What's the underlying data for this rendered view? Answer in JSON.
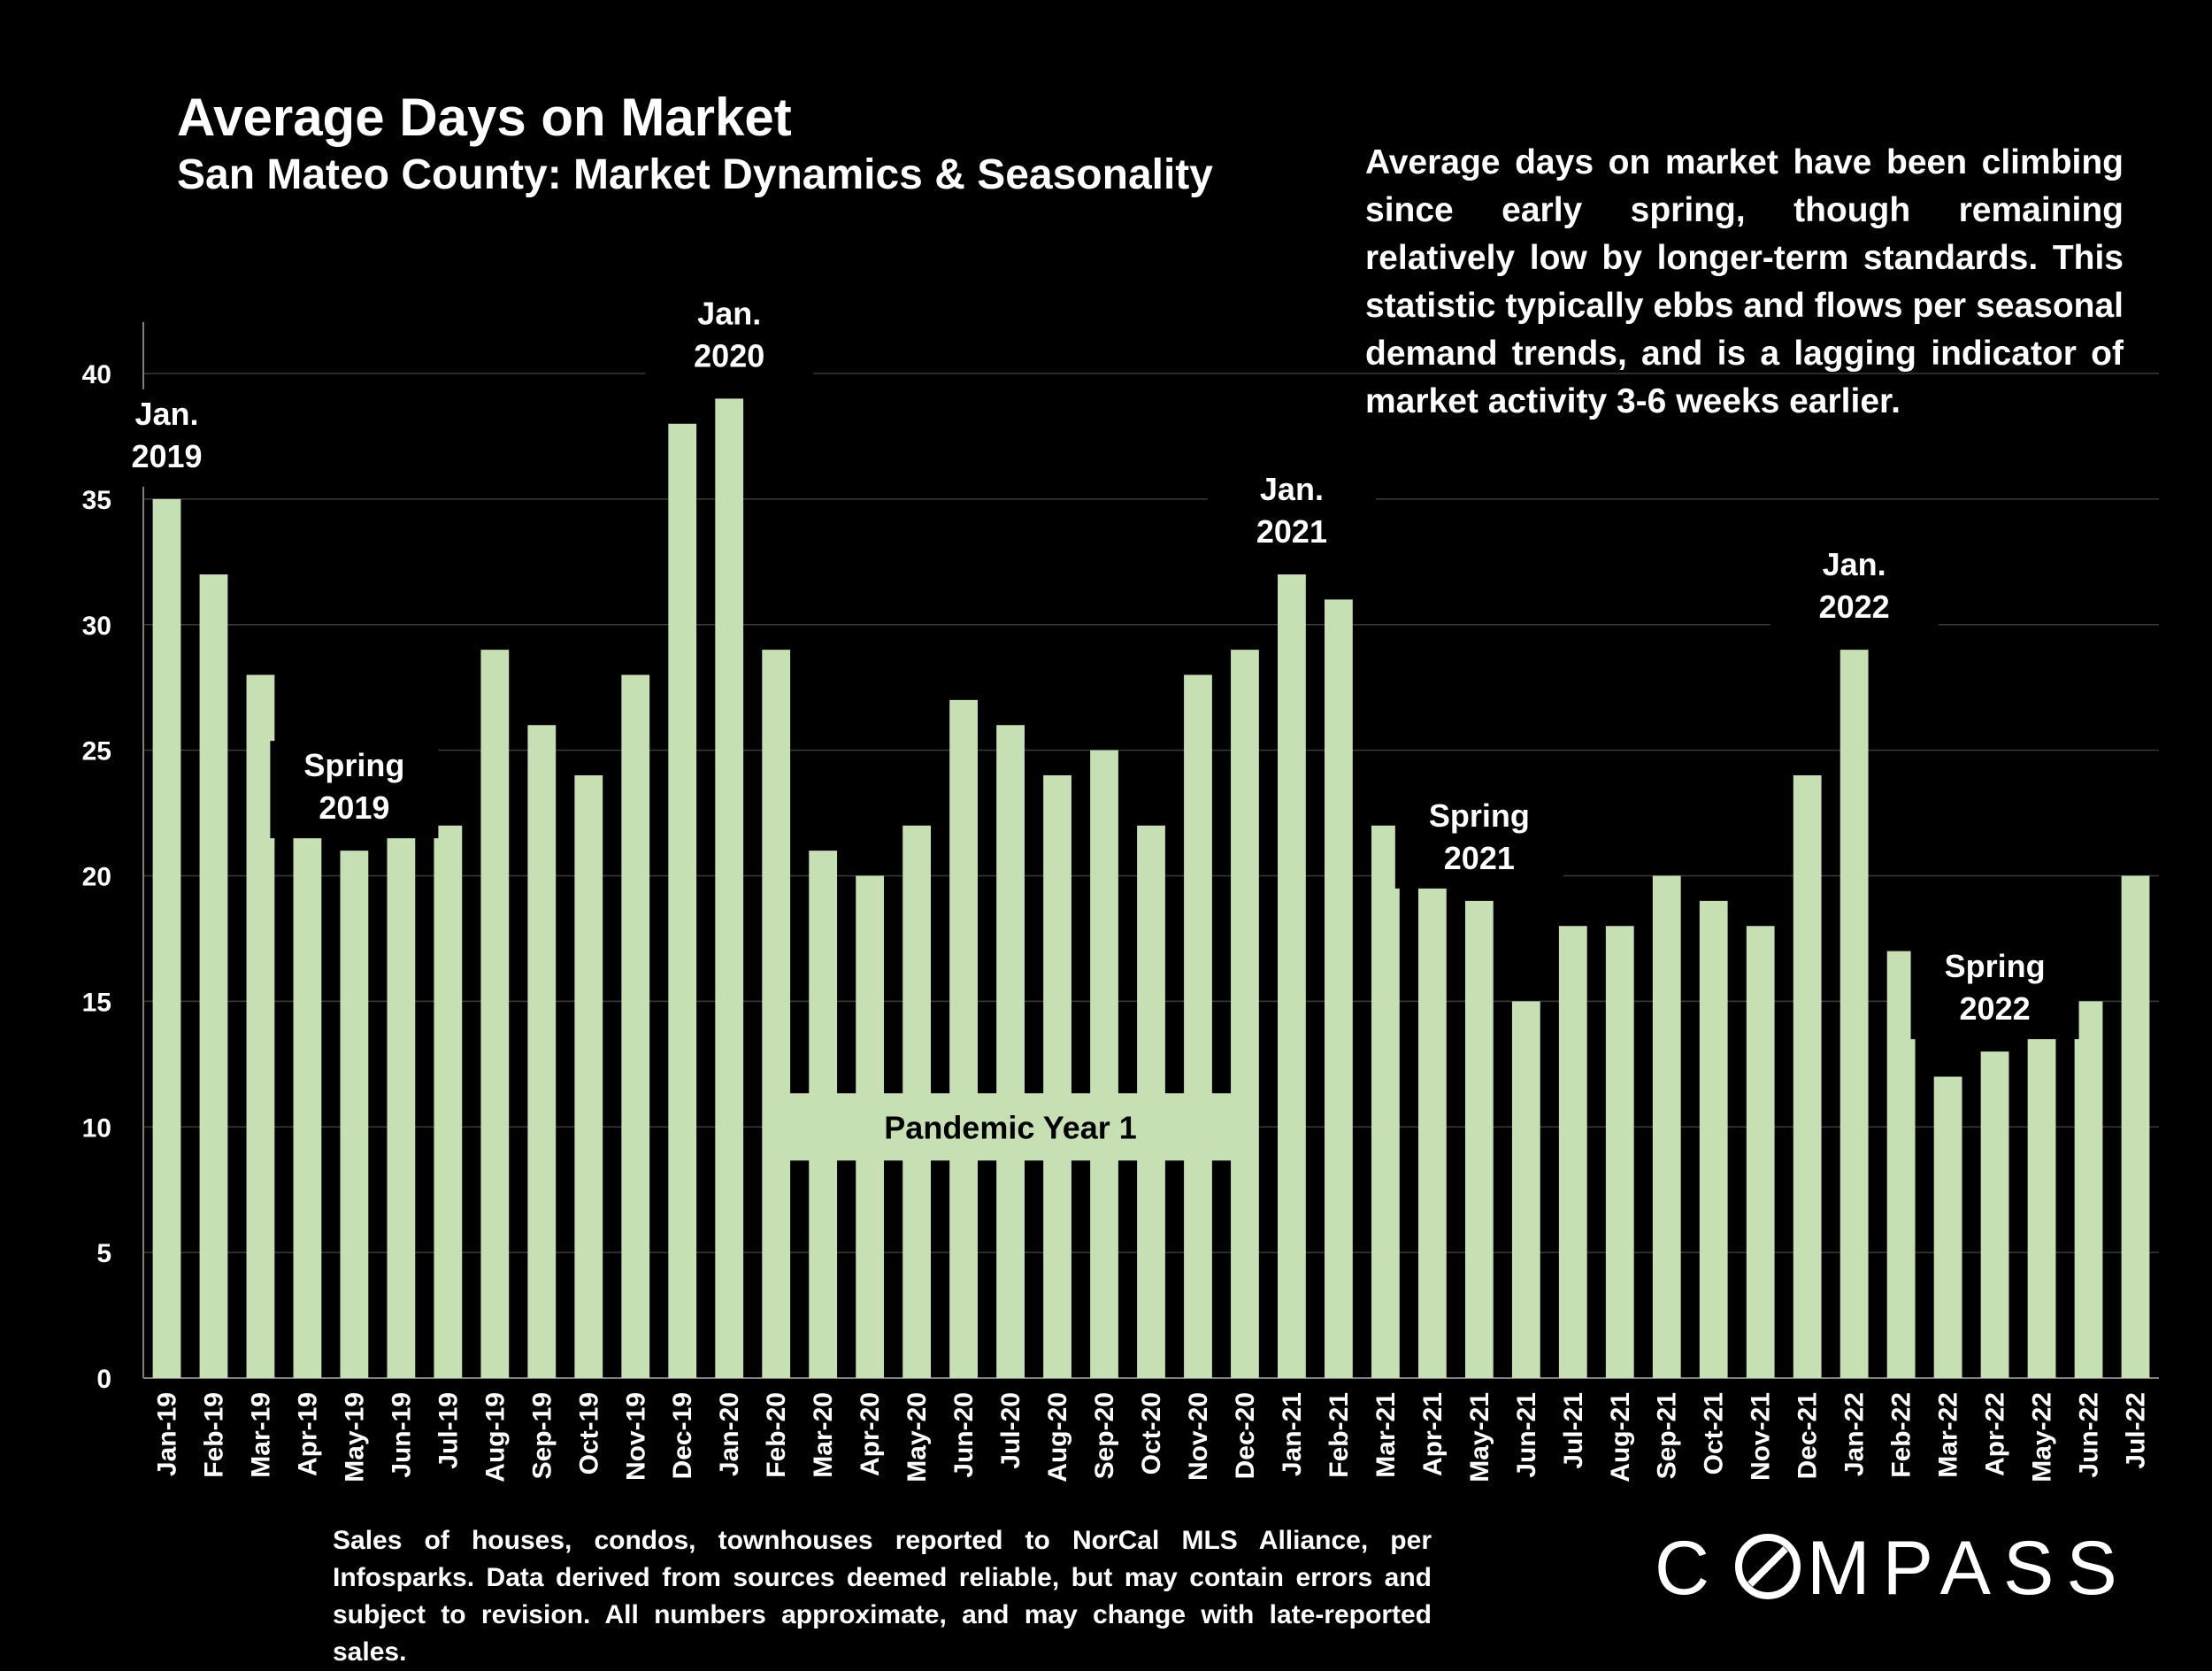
{
  "header": {
    "title": "Average Days on Market",
    "subtitle": "San Mateo County: Market Dynamics & Seasonality"
  },
  "commentary": "Average days on market have been climbing since early spring, though remaining relatively low by longer-term standards. This statistic typically ebbs and flows per seasonal demand trends, and is a lagging indicator of market activity 3-6 weeks earlier.",
  "footnote": "Sales of houses, condos, townhouses reported to NorCal MLS Alliance, per Infosparks. Data derived from sources deemed reliable, but may contain errors and subject to revision. All numbers approximate, and may change with late-reported sales.",
  "brand": {
    "logo_text": "COMPASS"
  },
  "colors": {
    "background": "#000000",
    "bar": "#c6e0b4",
    "text": "#ffffff",
    "grid": "#3a3a3a"
  },
  "chart_data": {
    "type": "bar",
    "categories": [
      "Jan-19",
      "Feb-19",
      "Mar-19",
      "Apr-19",
      "May-19",
      "Jun-19",
      "Jul-19",
      "Aug-19",
      "Sep-19",
      "Oct-19",
      "Nov-19",
      "Dec-19",
      "Jan-20",
      "Feb-20",
      "Mar-20",
      "Apr-20",
      "May-20",
      "Jun-20",
      "Jul-20",
      "Aug-20",
      "Sep-20",
      "Oct-20",
      "Nov-20",
      "Dec-20",
      "Jan-21",
      "Feb-21",
      "Mar-21",
      "Apr-21",
      "May-21",
      "Jun-21",
      "Jul-21",
      "Aug-21",
      "Sep-21",
      "Oct-21",
      "Nov-21",
      "Dec-21",
      "Jan-22",
      "Feb-22",
      "Mar-22",
      "Apr-22",
      "May-22",
      "Jun-22",
      "Jul-22"
    ],
    "values": [
      35,
      32,
      28,
      22,
      21,
      25,
      22,
      29,
      26,
      24,
      28,
      38,
      39,
      29,
      21,
      20,
      22,
      27,
      26,
      24,
      25,
      22,
      28,
      29,
      32,
      31,
      22,
      21,
      19,
      15,
      18,
      18,
      20,
      19,
      18,
      24,
      29,
      17,
      12,
      13,
      15,
      15,
      20
    ],
    "ylim": [
      0,
      40
    ],
    "yticks": [
      0,
      5,
      10,
      15,
      20,
      25,
      30,
      35,
      40
    ],
    "grid": true,
    "annotations": [
      {
        "category": "Jan-19",
        "lines": [
          "Jan.",
          "2019"
        ]
      },
      {
        "category": "May-19",
        "lines": [
          "Spring",
          "2019"
        ]
      },
      {
        "category": "Jan-20",
        "lines": [
          "Jan.",
          "2020"
        ]
      },
      {
        "category": "Jan-21",
        "lines": [
          "Jan.",
          "2021"
        ]
      },
      {
        "category": "May-21",
        "lines": [
          "Spring",
          "2021"
        ]
      },
      {
        "category": "Jan-22",
        "lines": [
          "Jan.",
          "2022"
        ]
      },
      {
        "category": "Apr-22",
        "lines": [
          "Spring",
          "2022"
        ]
      }
    ],
    "callout": {
      "text": "Pandemic Year 1",
      "from": "Mar-20",
      "to": "Nov-20",
      "value": 10
    }
  }
}
